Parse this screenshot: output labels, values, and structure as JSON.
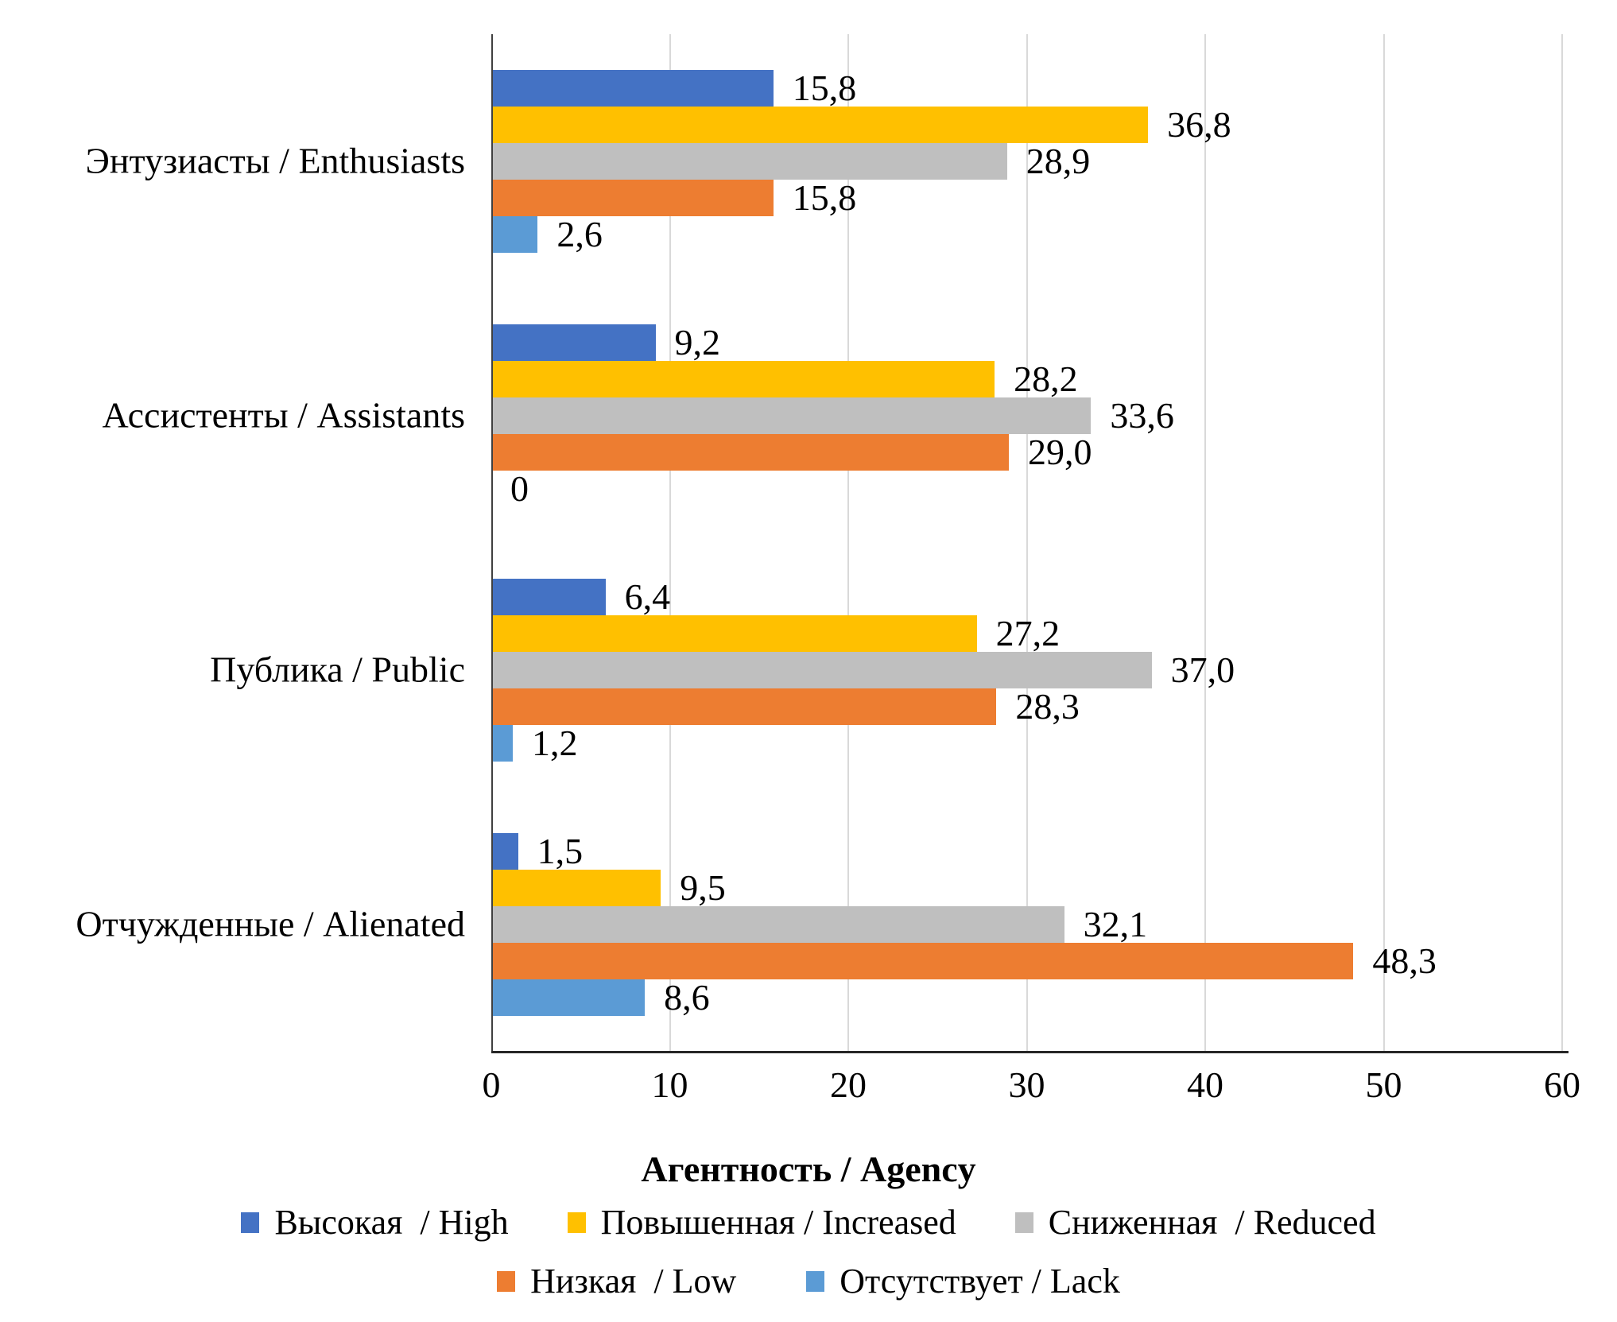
{
  "chart_data": {
    "type": "bar",
    "orientation": "horizontal",
    "title": "",
    "xlabel": "Агентность / Agency",
    "ylabel": "",
    "xlim": [
      0,
      60
    ],
    "xticks": [
      0,
      10,
      20,
      30,
      40,
      50,
      60
    ],
    "xtick_labels": [
      "0",
      "10",
      "20",
      "30",
      "40",
      "50",
      "60"
    ],
    "grid": true,
    "legend_position": "bottom",
    "categories": [
      "Энтузиасты / Enthusiasts",
      "Ассистенты / Assistants",
      "Публика / Public",
      "Отчужденные / Alienated"
    ],
    "series": [
      {
        "name": "Высокая  / High",
        "color": "#4472c4",
        "values": [
          15.8,
          9.2,
          6.4,
          1.5
        ],
        "labels": [
          "15,8",
          "9,2",
          "6,4",
          "1,5"
        ]
      },
      {
        "name": "Повышенная / Increased",
        "color": "#ffc000",
        "values": [
          36.8,
          28.2,
          27.2,
          9.5
        ],
        "labels": [
          "36,8",
          "28,2",
          "27,2",
          "9,5"
        ]
      },
      {
        "name": "Сниженная  / Reduced",
        "color": "#bfbfbf",
        "values": [
          28.9,
          33.6,
          37.0,
          32.1
        ],
        "labels": [
          "28,9",
          "33,6",
          "37,0",
          "32,1"
        ]
      },
      {
        "name": "Низкая  / Low",
        "color": "#ed7d31",
        "values": [
          15.8,
          29.0,
          28.3,
          48.3
        ],
        "labels": [
          "15,8",
          "29,0",
          "28,3",
          "48,3"
        ]
      },
      {
        "name": "Отсутствует / Lack",
        "color": "#5b9bd5",
        "values": [
          2.6,
          0,
          1.2,
          8.6
        ],
        "labels": [
          "2,6",
          "0",
          "1,2",
          "8,6"
        ]
      }
    ],
    "legend_rows": [
      [
        0,
        1,
        2
      ],
      [
        3,
        4
      ]
    ]
  }
}
